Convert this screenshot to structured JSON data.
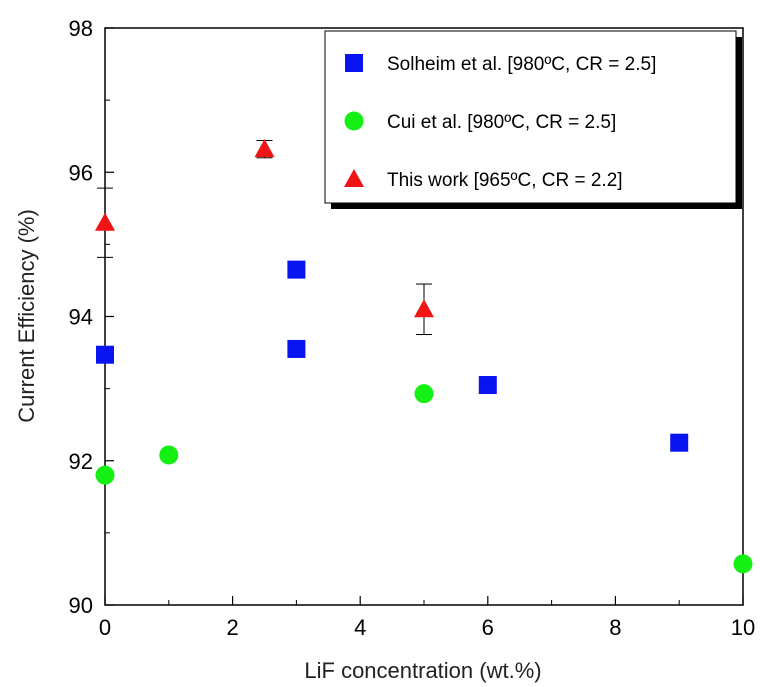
{
  "chart_data": {
    "type": "scatter",
    "title": "",
    "xlabel": "LiF concentration (wt.%)",
    "ylabel": "Current Efficiency (%)",
    "xlim": [
      0,
      10
    ],
    "ylim": [
      90,
      98
    ],
    "x_ticks": [
      0,
      2,
      4,
      6,
      8,
      10
    ],
    "y_ticks": [
      90,
      92,
      94,
      96,
      98
    ],
    "grid": false,
    "legend_position": "top-right",
    "series": [
      {
        "name": "Solheim et al. [980ºC, CR = 2.5]",
        "marker": "square",
        "color": "#0a14f0",
        "points": [
          {
            "x": 0,
            "y": 93.47
          },
          {
            "x": 3,
            "y": 94.65
          },
          {
            "x": 3,
            "y": 93.55
          },
          {
            "x": 6,
            "y": 93.05
          },
          {
            "x": 9,
            "y": 92.25
          }
        ]
      },
      {
        "name": "Cui et al. [980ºC, CR = 2.5]",
        "marker": "circle",
        "color": "#14f014",
        "points": [
          {
            "x": 0,
            "y": 91.8
          },
          {
            "x": 1,
            "y": 92.08
          },
          {
            "x": 5,
            "y": 92.93
          },
          {
            "x": 10,
            "y": 90.57
          }
        ]
      },
      {
        "name": "This work [965ºC, CR = 2.2]",
        "marker": "triangle",
        "color": "#f01414",
        "points": [
          {
            "x": 0,
            "y": 95.3,
            "err": 0.48
          },
          {
            "x": 2.5,
            "y": 96.32,
            "err": 0.12
          },
          {
            "x": 5,
            "y": 94.1,
            "err": 0.35
          }
        ]
      }
    ]
  }
}
